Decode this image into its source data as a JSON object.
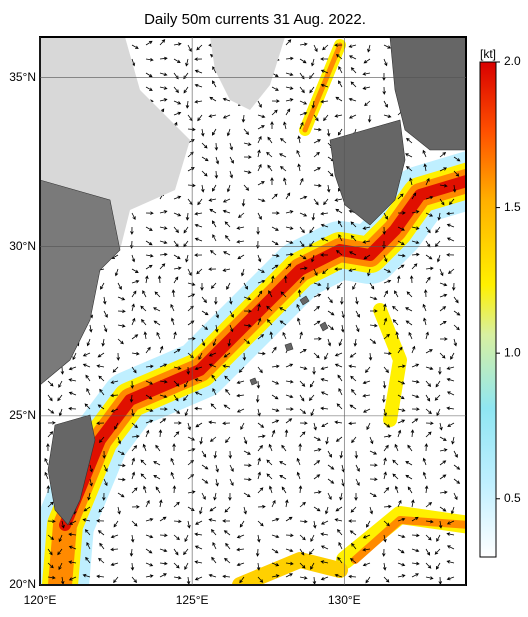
{
  "map": {
    "title": "Daily 50m currents 31 Aug. 2022.",
    "lonlim": [
      120,
      134
    ],
    "latlim": [
      20,
      36.2
    ],
    "lonticks": [
      {
        "value": 120,
        "label": "120°E"
      },
      {
        "value": 125,
        "label": "125°E"
      },
      {
        "value": 130,
        "label": "130°E"
      }
    ],
    "latticks": [
      {
        "value": 20,
        "label": "20°N"
      },
      {
        "value": 25,
        "label": "25°N"
      },
      {
        "value": 30,
        "label": "30°N"
      },
      {
        "value": 35,
        "label": "35°N"
      }
    ],
    "colorbar": {
      "label": "[kt]",
      "lim": [
        0.3,
        2.0
      ],
      "ticks": [
        0.5,
        {
          "value": 1.0,
          "label": "1.0"
        },
        1.5,
        {
          "value": 2.0,
          "label": "2.0"
        }
      ]
    }
  }
}
